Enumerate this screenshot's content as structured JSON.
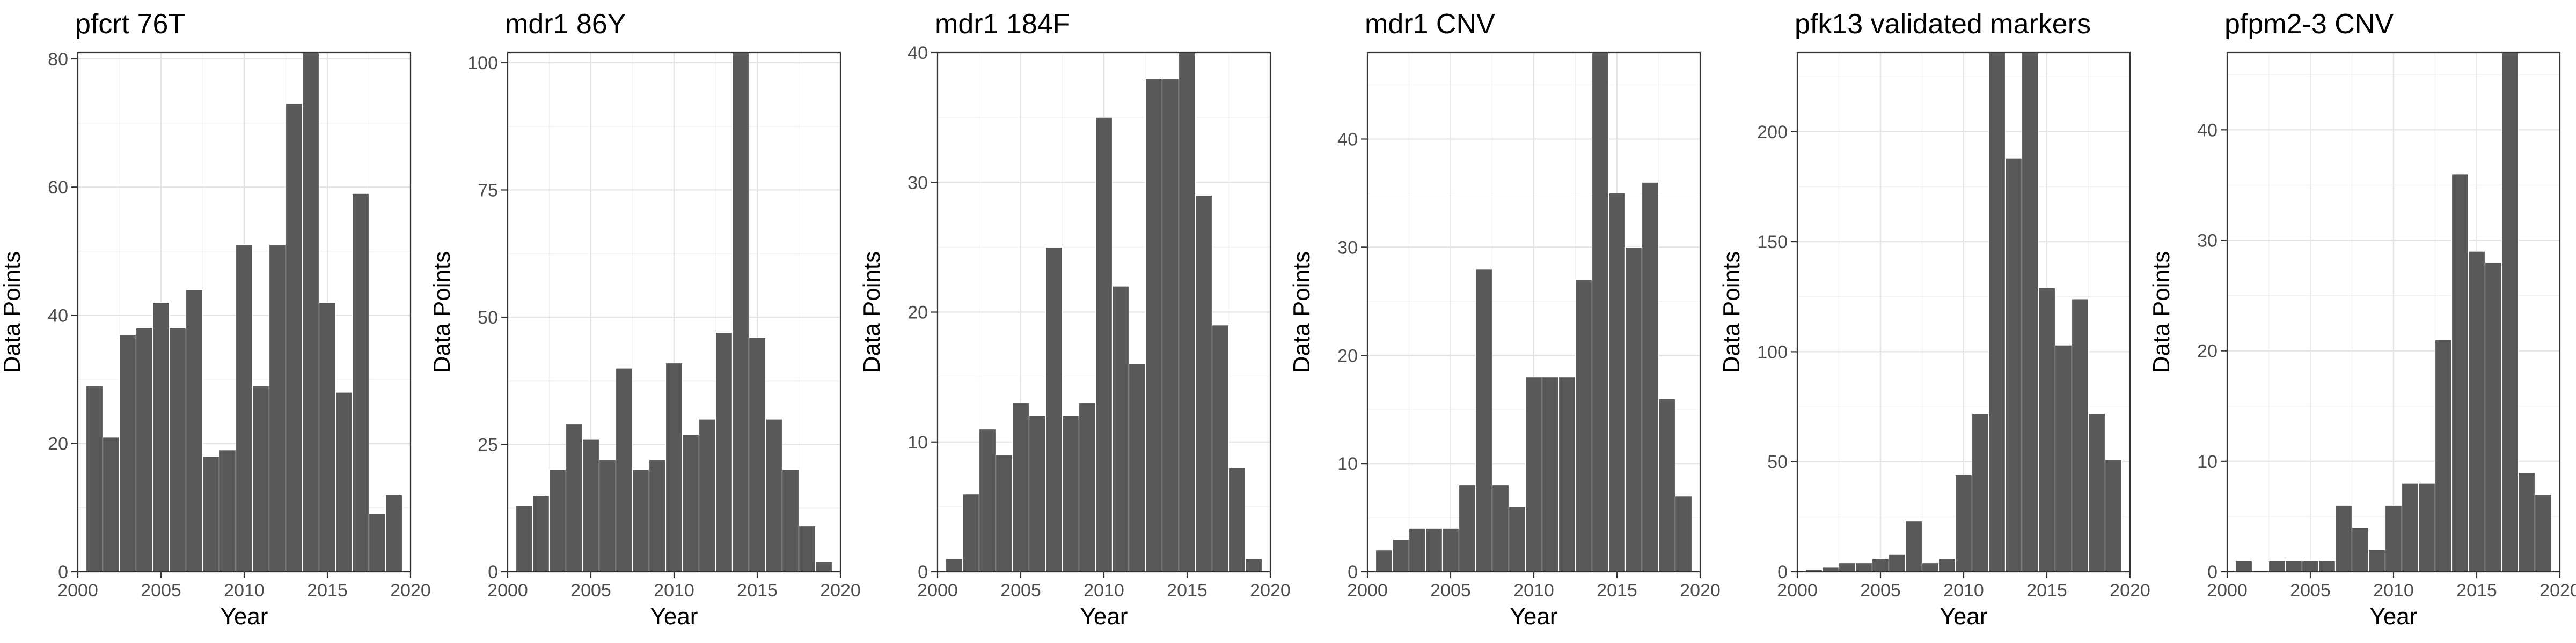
{
  "colors": {
    "bar": "#595959",
    "grid": "#ebebeb",
    "border": "#333333",
    "tick_text": "#4d4d4d"
  },
  "chart_data": [
    {
      "type": "bar",
      "title": "pfcrt 76T",
      "xlabel": "Year",
      "ylabel": "Data Points",
      "xlim": [
        2000,
        2020
      ],
      "ylim": [
        0,
        81
      ],
      "xticks": [
        2000,
        2005,
        2010,
        2015,
        2020
      ],
      "yticks": [
        0,
        20,
        40,
        60,
        80
      ],
      "grid": true,
      "x": [
        2001,
        2002,
        2003,
        2004,
        2005,
        2006,
        2007,
        2008,
        2009,
        2010,
        2011,
        2012,
        2013,
        2014,
        2015,
        2016,
        2017,
        2018,
        2019
      ],
      "values": [
        29,
        21,
        37,
        38,
        42,
        38,
        44,
        18,
        19,
        51,
        29,
        51,
        73,
        81,
        42,
        28,
        59,
        9,
        12
      ]
    },
    {
      "type": "bar",
      "title": "mdr1 86Y",
      "xlabel": "Year",
      "ylabel": "Data Points",
      "xlim": [
        2000,
        2020
      ],
      "ylim": [
        0,
        102
      ],
      "xticks": [
        2000,
        2005,
        2010,
        2015,
        2020
      ],
      "yticks": [
        0,
        25,
        50,
        75,
        100
      ],
      "grid": true,
      "x": [
        2001,
        2002,
        2003,
        2004,
        2005,
        2006,
        2007,
        2008,
        2009,
        2010,
        2011,
        2012,
        2013,
        2014,
        2015,
        2016,
        2017,
        2018,
        2019
      ],
      "values": [
        13,
        15,
        20,
        29,
        26,
        22,
        40,
        20,
        22,
        41,
        27,
        30,
        47,
        102,
        46,
        30,
        20,
        9,
        2
      ]
    },
    {
      "type": "bar",
      "title": "mdr1 184F",
      "xlabel": "Year",
      "ylabel": "Data Points",
      "xlim": [
        2000,
        2020
      ],
      "ylim": [
        0,
        40
      ],
      "xticks": [
        2000,
        2005,
        2010,
        2015,
        2020
      ],
      "yticks": [
        0,
        10,
        20,
        30,
        40
      ],
      "grid": true,
      "x": [
        2001,
        2002,
        2003,
        2004,
        2005,
        2006,
        2007,
        2008,
        2009,
        2010,
        2011,
        2012,
        2013,
        2014,
        2015,
        2016,
        2017,
        2018,
        2019
      ],
      "values": [
        1,
        6,
        11,
        9,
        13,
        12,
        25,
        12,
        13,
        35,
        22,
        16,
        38,
        38,
        40,
        29,
        19,
        8,
        1
      ]
    },
    {
      "type": "bar",
      "title": "mdr1 CNV",
      "xlabel": "Year",
      "ylabel": "Data Points",
      "xlim": [
        2000,
        2020
      ],
      "ylim": [
        0,
        48
      ],
      "xticks": [
        2000,
        2005,
        2010,
        2015,
        2020
      ],
      "yticks": [
        0,
        10,
        20,
        30,
        40
      ],
      "grid": true,
      "x": [
        2001,
        2002,
        2003,
        2004,
        2005,
        2006,
        2007,
        2008,
        2009,
        2010,
        2011,
        2012,
        2013,
        2014,
        2015,
        2016,
        2017,
        2018,
        2019
      ],
      "values": [
        2,
        3,
        4,
        4,
        4,
        8,
        28,
        8,
        6,
        18,
        18,
        18,
        27,
        48,
        35,
        30,
        36,
        16,
        7
      ]
    },
    {
      "type": "bar",
      "title": "pfk13 validated markers",
      "xlabel": "Year",
      "ylabel": "Data Points",
      "xlim": [
        2000,
        2020
      ],
      "ylim": [
        0,
        236
      ],
      "xticks": [
        2000,
        2005,
        2010,
        2015,
        2020
      ],
      "yticks": [
        0,
        50,
        100,
        150,
        200
      ],
      "grid": true,
      "x": [
        2001,
        2002,
        2003,
        2004,
        2005,
        2006,
        2007,
        2008,
        2009,
        2010,
        2011,
        2012,
        2013,
        2014,
        2015,
        2016,
        2017,
        2018,
        2019
      ],
      "values": [
        1,
        2,
        4,
        4,
        6,
        8,
        23,
        4,
        6,
        44,
        72,
        236,
        188,
        236,
        129,
        103,
        124,
        72,
        51
      ]
    },
    {
      "type": "bar",
      "title": "pfpm2-3 CNV",
      "xlabel": "Year",
      "ylabel": "Data Points",
      "xlim": [
        2000,
        2020
      ],
      "ylim": [
        0,
        47
      ],
      "xticks": [
        2000,
        2005,
        2010,
        2015,
        2020
      ],
      "yticks": [
        0,
        10,
        20,
        30,
        40
      ],
      "grid": true,
      "x": [
        2001,
        2003,
        2004,
        2005,
        2006,
        2007,
        2008,
        2009,
        2010,
        2011,
        2012,
        2013,
        2014,
        2015,
        2016,
        2017,
        2018,
        2019
      ],
      "values": [
        1,
        1,
        1,
        1,
        1,
        6,
        4,
        2,
        6,
        8,
        8,
        21,
        36,
        29,
        28,
        47,
        9,
        7
      ]
    }
  ]
}
